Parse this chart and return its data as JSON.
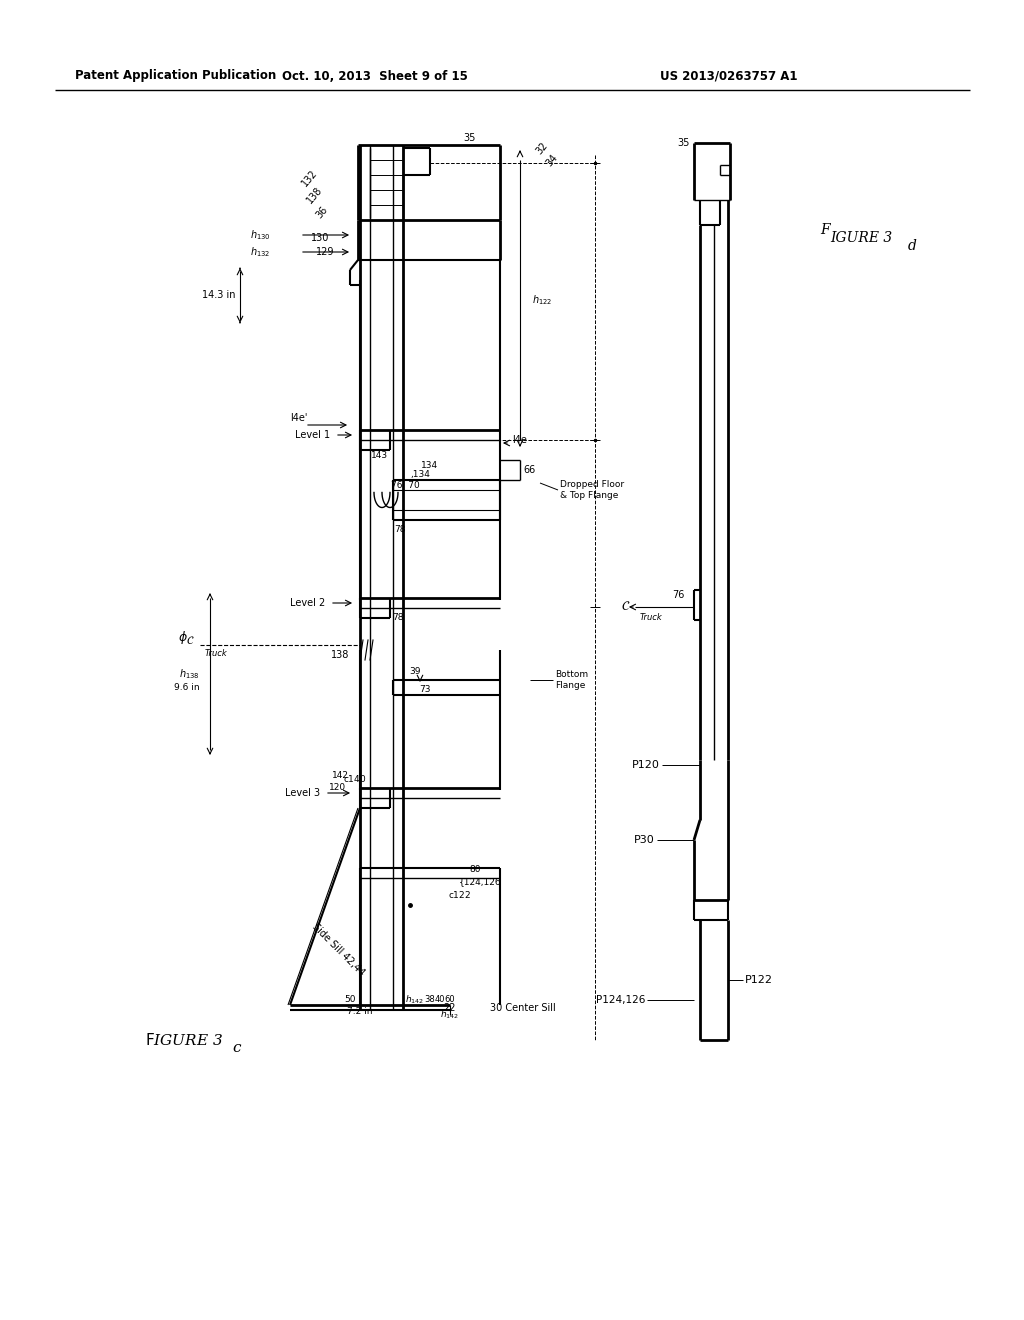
{
  "header_left": "Patent Application Publication",
  "header_center": "Oct. 10, 2013  Sheet 9 of 15",
  "header_right": "US 2013/0263757 A1",
  "bg_color": "#ffffff",
  "fig_width": 10.24,
  "fig_height": 13.2
}
